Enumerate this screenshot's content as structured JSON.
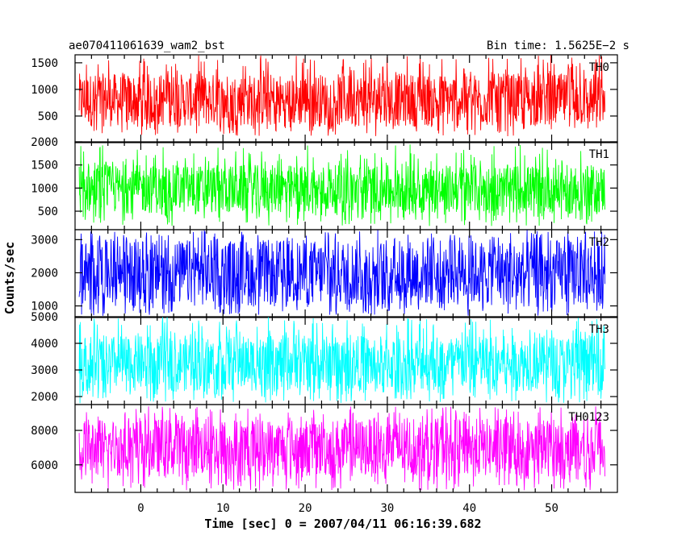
{
  "chart_data": {
    "type": "line",
    "title": "ae070411061639_wam2_bst",
    "bin_time_label": "Bin time: 1.5625E−2 s",
    "xlabel": "Time [sec] 0 = 2007/04/11 06:16:39.682",
    "ylabel": "Counts/sec",
    "xlim": [
      -8,
      58
    ],
    "x_range": [
      -7.5,
      56.5
    ],
    "x_ticks": [
      0,
      10,
      20,
      30,
      40,
      50
    ],
    "grid": false,
    "panels": [
      {
        "name": "TH0",
        "color": "#ff0000",
        "ylim": [
          0,
          1650
        ],
        "y_ticks": [
          500,
          1000,
          1500
        ],
        "band": [
          120,
          1650
        ],
        "core": [
          300,
          1300
        ]
      },
      {
        "name": "TH1",
        "color": "#00ff00",
        "ylim": [
          100,
          2000
        ],
        "y_ticks": [
          500,
          1000,
          1500,
          2000
        ],
        "band": [
          180,
          1950
        ],
        "core": [
          450,
          1500
        ]
      },
      {
        "name": "TH2",
        "color": "#0000ff",
        "ylim": [
          650,
          3300
        ],
        "y_ticks": [
          1000,
          2000,
          3000
        ],
        "band": [
          700,
          3300
        ],
        "core": [
          1000,
          3000
        ]
      },
      {
        "name": "TH3",
        "color": "#00ffff",
        "ylim": [
          1700,
          5000
        ],
        "y_ticks": [
          2000,
          3000,
          4000,
          5000
        ],
        "band": [
          1750,
          5000
        ],
        "core": [
          2200,
          4300
        ]
      },
      {
        "name": "TH0123",
        "color": "#ff00ff",
        "ylim": [
          4400,
          9500
        ],
        "y_ticks": [
          6000,
          8000
        ],
        "band": [
          4500,
          9400
        ],
        "core": [
          5300,
          8700
        ]
      }
    ]
  }
}
